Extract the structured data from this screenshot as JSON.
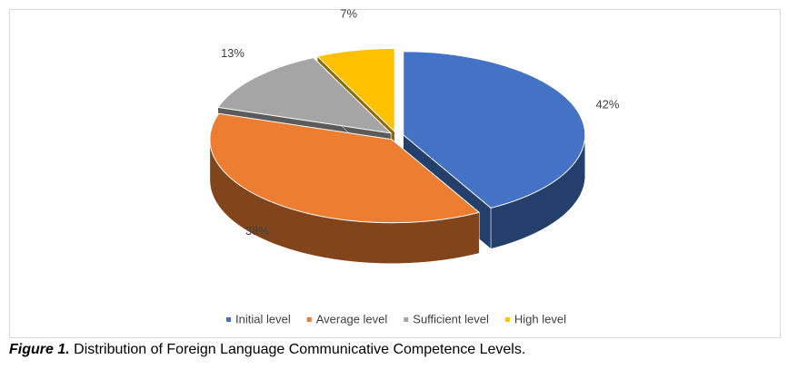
{
  "chart_data": {
    "type": "pie3d",
    "categories": [
      "Initial level",
      "Average level",
      "Sufficient level",
      "High level"
    ],
    "values": [
      42,
      38,
      13,
      7
    ],
    "value_labels": [
      "42%",
      "38%",
      "13%",
      "7%"
    ],
    "colors": [
      "#4472c4",
      "#ed7d31",
      "#a5a5a5",
      "#ffc000"
    ],
    "legend": "bottom"
  },
  "figure": {
    "label": "Figure 1.",
    "caption": "Distribution of Foreign Language Communicative Competence Levels."
  }
}
